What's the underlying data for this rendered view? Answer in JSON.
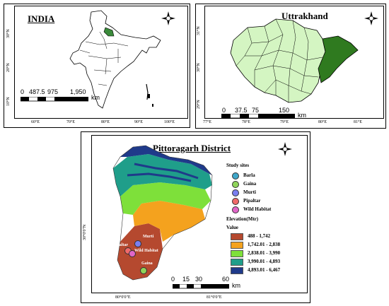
{
  "india": {
    "title": "INDIA",
    "scale_labels": [
      "0",
      "487.5",
      "975",
      "1,950",
      "km"
    ],
    "lon_ticks": [
      "60°E",
      "70°E",
      "80°E",
      "90°E",
      "100°E"
    ],
    "lat_ticks": [
      "30°N",
      "20°N",
      "10°N"
    ]
  },
  "uttrakhand": {
    "title": "Uttrakhand",
    "scale_labels": [
      "0",
      "37.5",
      "75",
      "150",
      "km"
    ],
    "lon_ticks": [
      "77°E",
      "78°E",
      "79°E",
      "80°E",
      "81°E"
    ],
    "lat_ticks": [
      "31°N",
      "30°N",
      "29°N"
    ]
  },
  "pittoragarh": {
    "title": "Pittoragarh District",
    "scale_labels": [
      "0",
      "15",
      "30",
      "60",
      "km"
    ],
    "lon_ticks": [
      "80°0'0\"E",
      "81°0'0\"E"
    ],
    "lat_ticks": [
      "30°0'0\"N"
    ],
    "site_labels": [
      "Murti",
      "Pipaltar",
      "Wild Habitat",
      "Gaina"
    ],
    "legend": {
      "sites_title": "Study sites",
      "sites": [
        {
          "label": "Barla",
          "color": "#3fa7c9"
        },
        {
          "label": "Gaina",
          "color": "#8fd45a"
        },
        {
          "label": "Murti",
          "color": "#7a7ff0"
        },
        {
          "label": "Pipaltar",
          "color": "#f06a6a"
        },
        {
          "label": "Wild Habitat",
          "color": "#e066c8"
        }
      ],
      "elev_title": "Elevation(Mtr)",
      "value_label": "Value",
      "classes": [
        {
          "label": "488 - 1,742",
          "color": "#b5492f"
        },
        {
          "label": "1,742.01 - 2,838",
          "color": "#f4a21e"
        },
        {
          "label": "2,838.01 - 3,990",
          "color": "#7ee03a"
        },
        {
          "label": "3,990.01 - 4,893",
          "color": "#1f9e8a"
        },
        {
          "label": "4,893.01 - 6,467",
          "color": "#1f3a8a"
        }
      ]
    }
  },
  "compass": {
    "n": "N",
    "s": "S",
    "e": "E",
    "w": "W"
  }
}
